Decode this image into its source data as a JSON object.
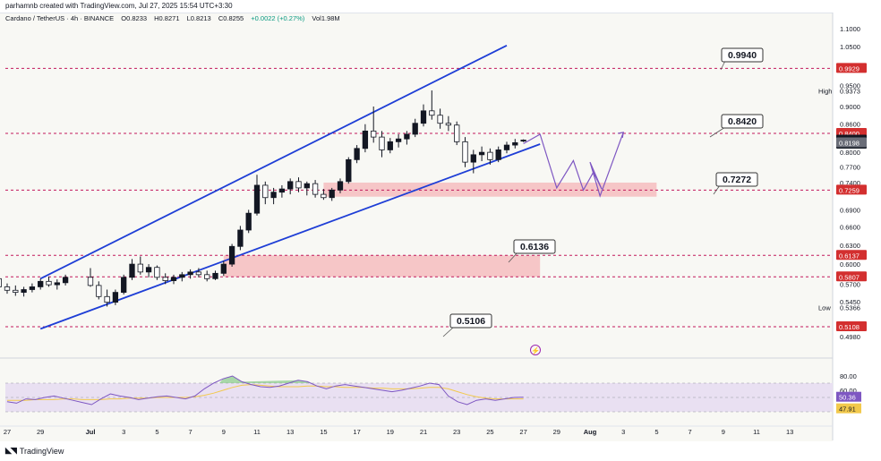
{
  "header": {
    "credit": "parhamnb created with TradingView.com, Jul 27, 2025 15:54 UTC+3:30"
  },
  "legend": {
    "symbol": "Cardano / TetherUS · 4h · BINANCE",
    "open": "O0.8233",
    "high": "H0.8271",
    "low": "L0.8213",
    "close": "C0.8255",
    "change": "+0.0022 (+0.27%)",
    "volume": "Vol1.98M"
  },
  "footer": {
    "brand": "TradingView",
    "logo": "tradingview-logo-icon"
  },
  "colors": {
    "up": "#131722",
    "down": "#ffffff",
    "channel": "#1e3ed6",
    "dashed": "#c2185b",
    "zone": "#f5b5b8",
    "projection": "#7e57c2",
    "rsi_line": "#7e57c2",
    "rsi_ma": "#f2c94c",
    "rsi_band": "#e9e0f2"
  },
  "chart_data": {
    "type": "candlestick",
    "title": "",
    "y_axis": {
      "ticks": [
        "1.1000",
        "1.0500",
        "0.9500",
        "0.9000",
        "0.8600",
        "0.8000",
        "0.7700",
        "0.7400",
        "0.6900",
        "0.6600",
        "0.6300",
        "0.6000",
        "0.5700",
        "0.5450",
        "0.4980"
      ],
      "scale": "log",
      "range": [
        0.48,
        1.12
      ]
    },
    "x_axis": {
      "ticks": [
        "27",
        "29",
        "Jul",
        "3",
        "5",
        "7",
        "9",
        "11",
        "13",
        "15",
        "17",
        "19",
        "21",
        "23",
        "25",
        "27",
        "29",
        "Aug",
        "3",
        "5",
        "7",
        "9",
        "11",
        "13"
      ]
    },
    "price_tags": [
      {
        "label": "0.9929",
        "value": 0.9929,
        "style": "red"
      },
      {
        "label": "0.8400",
        "value": 0.84,
        "style": "red"
      },
      {
        "label": "0.8255",
        "value": 0.8255,
        "style": "dark"
      },
      {
        "label": "03:35:10",
        "value": 0.817,
        "style": "dark"
      },
      {
        "label": "0.8198",
        "value": 0.8198,
        "style": "gray"
      },
      {
        "label": "0.7259",
        "value": 0.7259,
        "style": "red"
      },
      {
        "label": "0.6137",
        "value": 0.6137,
        "style": "red"
      },
      {
        "label": "0.5807",
        "value": 0.5807,
        "style": "red"
      },
      {
        "label": "0.5108",
        "value": 0.5108,
        "style": "red"
      }
    ],
    "high_label": {
      "text": "High",
      "value_text": "0.9373",
      "value": 0.9373
    },
    "low_label": {
      "text": "Low",
      "value_text": "0.5366",
      "value": 0.5366
    },
    "horizontal_levels": [
      0.9929,
      0.84,
      0.7259,
      0.6137,
      0.5807,
      0.5108
    ],
    "callouts": [
      {
        "text": "0.9940",
        "value": 0.994
      },
      {
        "text": "0.8420",
        "value": 0.842
      },
      {
        "text": "0.7272",
        "value": 0.7272
      },
      {
        "text": "0.6136",
        "value": 0.6136
      },
      {
        "text": "0.5106",
        "value": 0.5106
      }
    ],
    "zones": [
      {
        "from": 0.7137,
        "to": 0.74,
        "start": "Jul 15",
        "end": "Aug 5"
      },
      {
        "from": 0.5807,
        "to": 0.6137,
        "start": "Jul 9",
        "end": "Jul 28"
      }
    ],
    "channel": {
      "upper": [
        [
          "Jun 29",
          0.578
        ],
        [
          "Jul 26",
          1.053
        ]
      ],
      "lower": [
        [
          "Jun 29",
          0.508
        ],
        [
          "Jul 28",
          0.817
        ]
      ]
    },
    "projection": [
      [
        "Jul 27",
        0.818
      ],
      [
        "Jul 28",
        0.838
      ],
      [
        "Jul 29",
        0.73
      ],
      [
        "Jul 30",
        0.783
      ],
      [
        "Jul 30.6",
        0.726
      ],
      [
        "Jul 31.2",
        0.76
      ],
      [
        "Jul 31.7",
        0.728
      ],
      [
        "Aug 1",
        0.78
      ],
      [
        "Aug 1.6",
        0.715
      ],
      [
        "Aug 3",
        0.842
      ]
    ],
    "series": [
      {
        "name": "ADAUSDT",
        "candles": [
          [
            "Jun 26",
            0.585,
            0.592,
            0.575,
            0.578
          ],
          [
            "Jun 26.5",
            0.578,
            0.582,
            0.562,
            0.566
          ],
          [
            "Jun 27",
            0.566,
            0.571,
            0.556,
            0.561
          ],
          [
            "Jun 27.5",
            0.561,
            0.568,
            0.553,
            0.558
          ],
          [
            "Jun 28",
            0.558,
            0.566,
            0.552,
            0.562
          ],
          [
            "Jun 28.5",
            0.562,
            0.571,
            0.558,
            0.566
          ],
          [
            "Jun 29",
            0.566,
            0.578,
            0.562,
            0.574
          ],
          [
            "Jun 29.5",
            0.574,
            0.581,
            0.566,
            0.569
          ],
          [
            "Jun 30",
            0.569,
            0.577,
            0.562,
            0.572
          ],
          [
            "Jun 30.5",
            0.572,
            0.584,
            0.568,
            0.58
          ],
          [
            "Jul 1",
            0.58,
            0.594,
            0.566,
            0.568
          ],
          [
            "Jul 1.5",
            0.568,
            0.574,
            0.548,
            0.552
          ],
          [
            "Jul 2",
            0.552,
            0.562,
            0.538,
            0.544
          ],
          [
            "Jul 2.5",
            0.544,
            0.562,
            0.54,
            0.558
          ],
          [
            "Jul 3",
            0.558,
            0.584,
            0.555,
            0.58
          ],
          [
            "Jul 3.5",
            0.58,
            0.608,
            0.576,
            0.6
          ],
          [
            "Jul 4",
            0.6,
            0.612,
            0.584,
            0.588
          ],
          [
            "Jul 4.5",
            0.588,
            0.6,
            0.58,
            0.595
          ],
          [
            "Jul 5",
            0.595,
            0.598,
            0.576,
            0.58
          ],
          [
            "Jul 5.5",
            0.58,
            0.586,
            0.57,
            0.575
          ],
          [
            "Jul 6",
            0.575,
            0.584,
            0.57,
            0.58
          ],
          [
            "Jul 6.5",
            0.58,
            0.588,
            0.574,
            0.584
          ],
          [
            "Jul 7",
            0.584,
            0.592,
            0.578,
            0.588
          ],
          [
            "Jul 7.5",
            0.588,
            0.594,
            0.58,
            0.584
          ],
          [
            "Jul 8",
            0.584,
            0.59,
            0.574,
            0.578
          ],
          [
            "Jul 8.5",
            0.578,
            0.59,
            0.576,
            0.586
          ],
          [
            "Jul 9",
            0.586,
            0.605,
            0.582,
            0.6
          ],
          [
            "Jul 9.5",
            0.6,
            0.632,
            0.596,
            0.628
          ],
          [
            "Jul 10",
            0.628,
            0.662,
            0.622,
            0.655
          ],
          [
            "Jul 10.5",
            0.655,
            0.69,
            0.65,
            0.684
          ],
          [
            "Jul 11",
            0.684,
            0.755,
            0.68,
            0.735
          ],
          [
            "Jul 11.5",
            0.735,
            0.742,
            0.7,
            0.712
          ],
          [
            "Jul 12",
            0.712,
            0.73,
            0.7,
            0.722
          ],
          [
            "Jul 12.5",
            0.722,
            0.735,
            0.712,
            0.728
          ],
          [
            "Jul 13",
            0.728,
            0.748,
            0.718,
            0.742
          ],
          [
            "Jul 13.5",
            0.742,
            0.75,
            0.722,
            0.73
          ],
          [
            "Jul 14",
            0.73,
            0.742,
            0.716,
            0.738
          ],
          [
            "Jul 14.5",
            0.738,
            0.745,
            0.712,
            0.718
          ],
          [
            "Jul 15",
            0.718,
            0.728,
            0.708,
            0.712
          ],
          [
            "Jul 15.5",
            0.712,
            0.73,
            0.706,
            0.726
          ],
          [
            "Jul 16",
            0.726,
            0.748,
            0.72,
            0.742
          ],
          [
            "Jul 16.5",
            0.742,
            0.79,
            0.738,
            0.785
          ],
          [
            "Jul 17",
            0.785,
            0.815,
            0.778,
            0.808
          ],
          [
            "Jul 17.5",
            0.808,
            0.86,
            0.8,
            0.845
          ],
          [
            "Jul 18",
            0.845,
            0.9,
            0.82,
            0.832
          ],
          [
            "Jul 18.5",
            0.832,
            0.845,
            0.79,
            0.805
          ],
          [
            "Jul 19",
            0.805,
            0.83,
            0.798,
            0.822
          ],
          [
            "Jul 19.5",
            0.822,
            0.838,
            0.81,
            0.828
          ],
          [
            "Jul 20",
            0.828,
            0.845,
            0.816,
            0.838
          ],
          [
            "Jul 20.5",
            0.838,
            0.872,
            0.832,
            0.862
          ],
          [
            "Jul 21",
            0.862,
            0.905,
            0.855,
            0.89
          ],
          [
            "Jul 21.5",
            0.89,
            0.938,
            0.87,
            0.88
          ],
          [
            "Jul 22",
            0.88,
            0.895,
            0.85,
            0.862
          ],
          [
            "Jul 22.5",
            0.862,
            0.878,
            0.845,
            0.858
          ],
          [
            "Jul 23",
            0.858,
            0.866,
            0.815,
            0.822
          ],
          [
            "Jul 23.5",
            0.822,
            0.832,
            0.77,
            0.78
          ],
          [
            "Jul 24",
            0.78,
            0.805,
            0.758,
            0.795
          ],
          [
            "Jul 24.5",
            0.795,
            0.812,
            0.782,
            0.8
          ],
          [
            "Jul 25",
            0.8,
            0.808,
            0.775,
            0.785
          ],
          [
            "Jul 25.5",
            0.785,
            0.812,
            0.78,
            0.805
          ],
          [
            "Jul 26",
            0.805,
            0.822,
            0.798,
            0.815
          ],
          [
            "Jul 26.5",
            0.815,
            0.828,
            0.808,
            0.82
          ],
          [
            "Jul 27",
            0.8233,
            0.8271,
            0.8213,
            0.8255
          ]
        ]
      }
    ],
    "rsi": {
      "ticks": [
        "80.00",
        "60.00"
      ],
      "value_text": "50.36",
      "ma_text": "47.91",
      "band": [
        30,
        70
      ],
      "range": [
        20,
        90
      ],
      "values": [
        44,
        42,
        48,
        47,
        50,
        52,
        49,
        46,
        43,
        40,
        48,
        55,
        52,
        50,
        47,
        49,
        51,
        52,
        50,
        48,
        52,
        62,
        70,
        76,
        80,
        72,
        68,
        65,
        64,
        66,
        70,
        74,
        72,
        66,
        62,
        66,
        68,
        66,
        64,
        62,
        60,
        58,
        60,
        63,
        66,
        70,
        68,
        52,
        44,
        40,
        46,
        48,
        46,
        48,
        50,
        50.36
      ],
      "ma": [
        46,
        46,
        46,
        47,
        47,
        47,
        48,
        48,
        47,
        47,
        47,
        48,
        48,
        49,
        49,
        49,
        50,
        50,
        50,
        50,
        51,
        53,
        56,
        60,
        64,
        67,
        68,
        67,
        66,
        65,
        65,
        65,
        66,
        66,
        65,
        65,
        64,
        64,
        64,
        63,
        63,
        62,
        62,
        62,
        63,
        64,
        64,
        62,
        58,
        54,
        51,
        49,
        48,
        48,
        48,
        47.91
      ]
    }
  }
}
